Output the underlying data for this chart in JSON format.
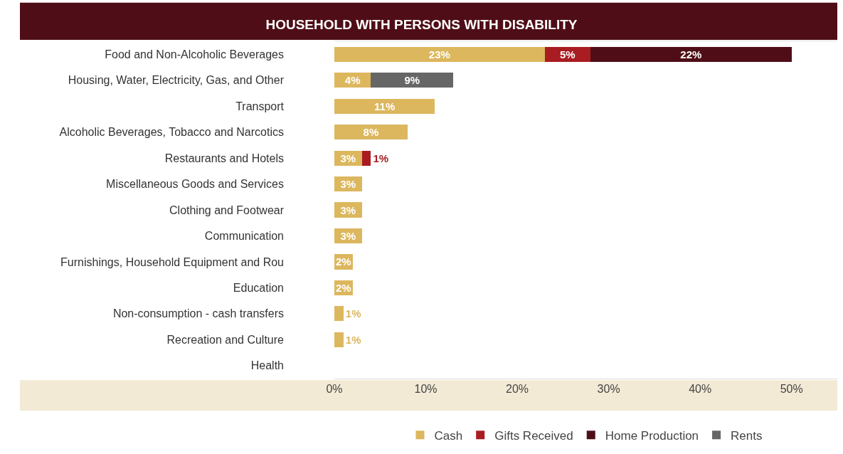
{
  "chart_data": {
    "type": "bar",
    "orientation": "horizontal",
    "stacked": true,
    "title": "HOUSEHOLD WITH PERSONS WITH DISABILITY",
    "categories": [
      "Food and Non-Alcoholic Beverages",
      "Housing, Water, Electricity, Gas, and Other",
      "Transport",
      "Alcoholic Beverages, Tobacco and Narcotics",
      "Restaurants and Hotels",
      "Miscellaneous Goods and Services",
      "Clothing and Footwear",
      "Communication",
      "Furnishings, Household Equipment and Rou",
      "Education",
      "Non-consumption - cash transfers",
      "Recreation and Culture",
      "Health"
    ],
    "series": [
      {
        "name": "Cash",
        "color": "#dcb75e",
        "values": [
          23,
          4,
          11,
          8,
          3,
          3,
          3,
          3,
          2,
          2,
          1,
          1,
          null
        ],
        "value_labels": [
          "23%",
          "4%",
          "11%",
          "8%",
          "3%",
          "3%",
          "3%",
          "3%",
          "2%",
          "2%",
          "1%",
          "1%",
          null
        ]
      },
      {
        "name": "Gifts Received",
        "color": "#a81c22",
        "values": [
          5,
          null,
          null,
          null,
          1,
          null,
          null,
          null,
          null,
          null,
          null,
          null,
          null
        ],
        "value_labels": [
          "5%",
          null,
          null,
          null,
          "1%",
          null,
          null,
          null,
          null,
          null,
          null,
          null,
          null
        ]
      },
      {
        "name": "Home Production",
        "color": "#4f0e17",
        "values": [
          22,
          null,
          null,
          null,
          null,
          null,
          null,
          null,
          null,
          null,
          null,
          null,
          null
        ],
        "value_labels": [
          "22%",
          null,
          null,
          null,
          null,
          null,
          null,
          null,
          null,
          null,
          null,
          null,
          null
        ]
      },
      {
        "name": "Rents",
        "color": "#666666",
        "values": [
          null,
          9,
          null,
          null,
          null,
          null,
          null,
          null,
          null,
          null,
          null,
          null,
          null
        ],
        "value_labels": [
          null,
          "9%",
          null,
          null,
          null,
          null,
          null,
          null,
          null,
          null,
          null,
          null,
          null
        ]
      }
    ],
    "xlim": [
      0,
      55
    ],
    "xticks": [
      {
        "value": 0,
        "label": "0%"
      },
      {
        "value": 10,
        "label": "10%"
      },
      {
        "value": 20,
        "label": "20%"
      },
      {
        "value": 30,
        "label": "30%"
      },
      {
        "value": 40,
        "label": "40%"
      },
      {
        "value": 50,
        "label": "50%"
      }
    ],
    "legend": "bottom"
  }
}
